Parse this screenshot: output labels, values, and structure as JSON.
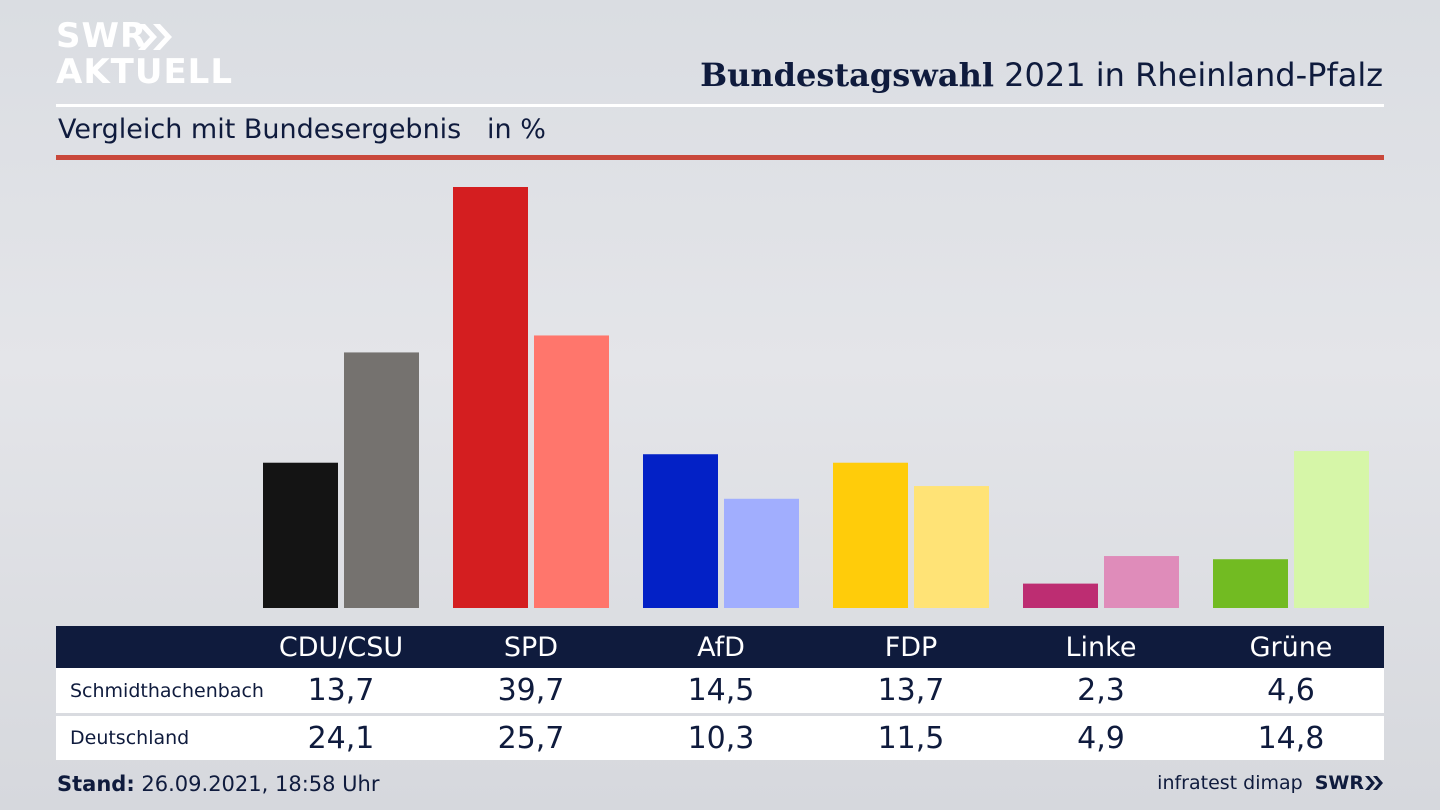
{
  "header": {
    "logo_line1": "SWR",
    "logo_line2": "AKTUELL",
    "title_bold": "Bundestagswahl",
    "title_rest": " 2021 in Rheinland-Pfalz",
    "subtitle": "Vergleich mit Bundesergebnis   in %"
  },
  "chart_data": {
    "type": "bar",
    "categories": [
      "CDU/CSU",
      "SPD",
      "AfD",
      "FDP",
      "Linke",
      "Grüne"
    ],
    "series": [
      {
        "name": "Schmidthachenbach",
        "values": [
          13.7,
          39.7,
          14.5,
          13.7,
          2.3,
          4.6
        ]
      },
      {
        "name": "Deutschland",
        "values": [
          24.1,
          25.7,
          10.3,
          11.5,
          4.9,
          14.8
        ]
      }
    ],
    "value_labels": [
      [
        "13,7",
        "39,7",
        "14,5",
        "13,7",
        "2,3",
        "4,6"
      ],
      [
        "24,1",
        "25,7",
        "10,3",
        "11,5",
        "4,9",
        "14,8"
      ]
    ],
    "colors_local": [
      "#141414",
      "#d41e20",
      "#0321c6",
      "#ffcc0a",
      "#bd2d72",
      "#72bb22"
    ],
    "colors_national": [
      "#75726f",
      "#ff766c",
      "#a1aefe",
      "#ffe376",
      "#df8cba",
      "#d6f6a8"
    ],
    "ylim": [
      0,
      40
    ],
    "title": "Bundestagswahl 2021 in Rheinland-Pfalz",
    "subtitle": "Vergleich mit Bundesergebnis in %",
    "grid": false
  },
  "footer": {
    "stand_label": "Stand:",
    "stand_value": " 26.09.2021, 18:58 Uhr",
    "source": "infratest dimap",
    "brand": "SWR"
  }
}
